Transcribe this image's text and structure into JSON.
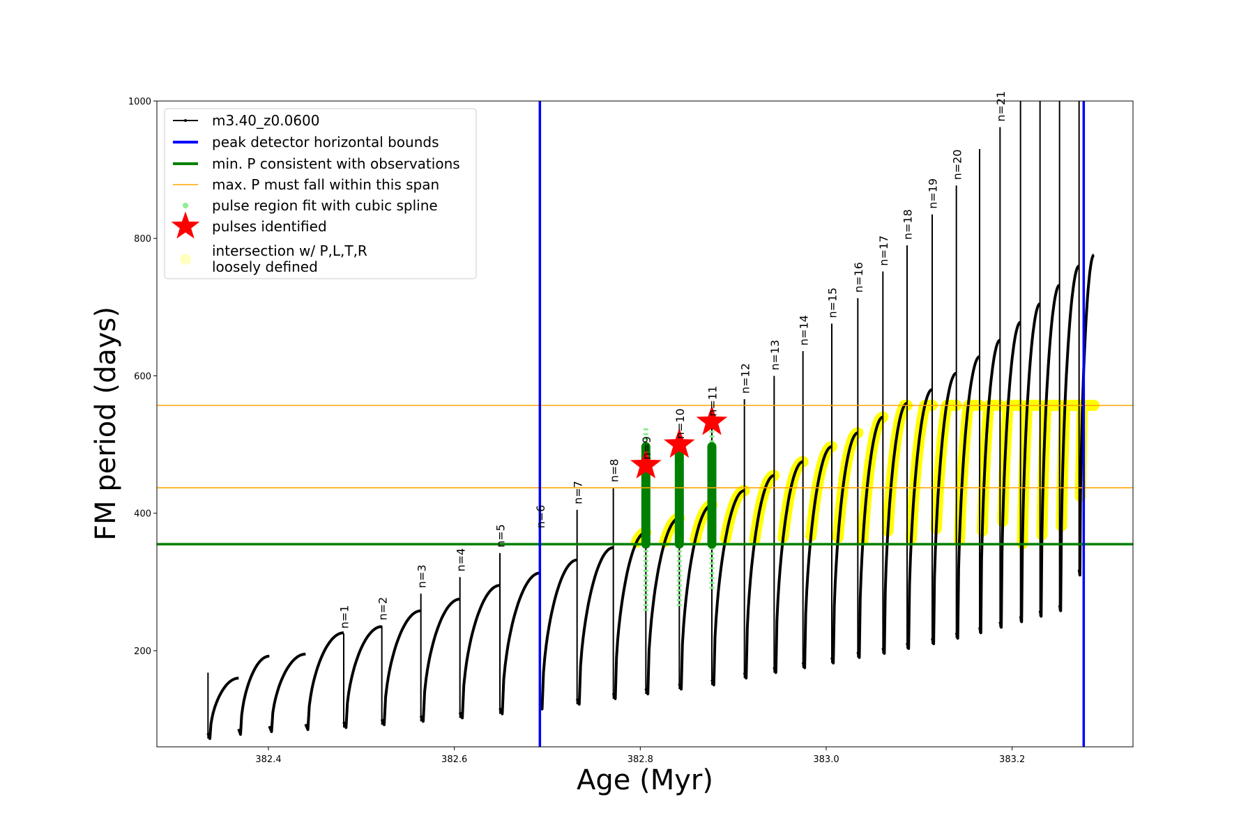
{
  "chart_data": {
    "type": "line",
    "xlabel": "Age (Myr)",
    "ylabel": "FM period (days)",
    "xlim": [
      382.28,
      383.33
    ],
    "ylim": [
      60,
      1000
    ],
    "xticks": [
      {
        "value": 382.4,
        "label": "382.4"
      },
      {
        "value": 382.6,
        "label": "382.6"
      },
      {
        "value": 382.8,
        "label": "382.8"
      },
      {
        "value": 383.0,
        "label": "383.0"
      },
      {
        "value": 383.2,
        "label": "383.2"
      }
    ],
    "yticks": [
      {
        "value": 200,
        "label": "200"
      },
      {
        "value": 400,
        "label": "400"
      },
      {
        "value": 600,
        "label": "600"
      },
      {
        "value": 800,
        "label": "800"
      },
      {
        "value": 1000,
        "label": "1000"
      }
    ],
    "colors": {
      "track": "#000000",
      "bounds": "#0000ff",
      "min_period": "#008000",
      "span": "#ffa500",
      "spline": "#90ee90",
      "pulse_star": "#ff0000",
      "intersection": "#ffff00",
      "loose": "#ffffc0"
    },
    "series_track": {
      "name": "m3.40_z0.0600",
      "cycles": [
        {
          "start": 382.335,
          "min": 72,
          "peak": 160
        },
        {
          "start": 382.368,
          "min": 78,
          "peak": 192
        },
        {
          "start": 382.401,
          "min": 82,
          "peak": 195
        },
        {
          "start": 382.44,
          "min": 85,
          "peak": 226
        },
        {
          "start": 382.481,
          "min": 88,
          "peak": 235
        },
        {
          "start": 382.522,
          "min": 92,
          "peak": 258
        },
        {
          "start": 382.564,
          "min": 97,
          "peak": 275
        },
        {
          "start": 382.606,
          "min": 102,
          "peak": 295
        },
        {
          "start": 382.649,
          "min": 108,
          "peak": 313
        },
        {
          "start": 382.692,
          "min": 115,
          "peak": 332
        },
        {
          "start": 382.732,
          "min": 122,
          "peak": 350
        },
        {
          "start": 382.771,
          "min": 130,
          "peak": 372
        },
        {
          "start": 382.806,
          "min": 137,
          "peak": 393
        },
        {
          "start": 382.842,
          "min": 144,
          "peak": 412
        },
        {
          "start": 382.877,
          "min": 150,
          "peak": 433
        },
        {
          "start": 382.912,
          "min": 160,
          "peak": 455
        },
        {
          "start": 382.944,
          "min": 168,
          "peak": 475
        },
        {
          "start": 382.975,
          "min": 175,
          "peak": 497
        },
        {
          "start": 383.006,
          "min": 182,
          "peak": 517
        },
        {
          "start": 383.034,
          "min": 190,
          "peak": 540
        },
        {
          "start": 383.061,
          "min": 196,
          "peak": 560
        },
        {
          "start": 383.087,
          "min": 203,
          "peak": 580
        },
        {
          "start": 383.114,
          "min": 210,
          "peak": 604
        },
        {
          "start": 383.14,
          "min": 218,
          "peak": 628
        },
        {
          "start": 383.165,
          "min": 226,
          "peak": 652
        },
        {
          "start": 383.187,
          "min": 234,
          "peak": 678
        },
        {
          "start": 383.209,
          "min": 242,
          "peak": 705
        },
        {
          "start": 383.23,
          "min": 250,
          "peak": 732
        },
        {
          "start": 383.251,
          "min": 258,
          "peak": 760
        },
        {
          "start": 383.272,
          "min": 310,
          "peak": 776,
          "end": 383.288
        }
      ],
      "spikes": [
        {
          "x": 382.335,
          "top": 168
        },
        {
          "x": 382.481,
          "top": 225
        },
        {
          "x": 382.522,
          "top": 236
        },
        {
          "x": 382.564,
          "top": 283
        },
        {
          "x": 382.606,
          "top": 307
        },
        {
          "x": 382.649,
          "top": 342
        },
        {
          "x": 382.692,
          "top": 370
        },
        {
          "x": 382.732,
          "top": 405
        },
        {
          "x": 382.771,
          "top": 437
        },
        {
          "x": 382.806,
          "top": 470
        },
        {
          "x": 382.842,
          "top": 500
        },
        {
          "x": 382.877,
          "top": 533
        },
        {
          "x": 382.912,
          "top": 566
        },
        {
          "x": 382.944,
          "top": 600
        },
        {
          "x": 382.975,
          "top": 636
        },
        {
          "x": 383.006,
          "top": 676
        },
        {
          "x": 383.034,
          "top": 713
        },
        {
          "x": 383.061,
          "top": 752
        },
        {
          "x": 383.087,
          "top": 790
        },
        {
          "x": 383.114,
          "top": 835
        },
        {
          "x": 383.14,
          "top": 877
        },
        {
          "x": 383.165,
          "top": 930
        },
        {
          "x": 383.187,
          "top": 962
        },
        {
          "x": 383.209,
          "top": 1000
        },
        {
          "x": 383.23,
          "top": 1000
        },
        {
          "x": 383.251,
          "top": 1000
        },
        {
          "x": 383.272,
          "top": 1000
        }
      ]
    },
    "peak_detector_bounds": [
      382.692,
      383.277
    ],
    "min_period": 355,
    "span": [
      437,
      557
    ],
    "pulses": [
      {
        "x": 382.806,
        "y": 470
      },
      {
        "x": 382.842,
        "y": 500
      },
      {
        "x": 382.877,
        "y": 533
      }
    ],
    "spline_regions": [
      {
        "x": 382.806,
        "ymin": 258,
        "ymax": 525,
        "green_min": 355,
        "green_max": 497
      },
      {
        "x": 382.842,
        "ymin": 265,
        "ymax": 500,
        "green_min": 355,
        "green_max": 495
      },
      {
        "x": 382.877,
        "ymin": 290,
        "ymax": 520,
        "green_min": 355,
        "green_max": 497
      }
    ],
    "pulse_labels": [
      {
        "x": 382.483,
        "y": 232,
        "text": "n=1"
      },
      {
        "x": 382.524,
        "y": 244,
        "text": "n=2"
      },
      {
        "x": 382.566,
        "y": 291,
        "text": "n=3"
      },
      {
        "x": 382.608,
        "y": 315,
        "text": "n=4"
      },
      {
        "x": 382.651,
        "y": 350,
        "text": "n=5"
      },
      {
        "x": 382.694,
        "y": 378,
        "text": "n=6"
      },
      {
        "x": 382.734,
        "y": 413,
        "text": "n=7"
      },
      {
        "x": 382.773,
        "y": 445,
        "text": "n=8"
      },
      {
        "x": 382.808,
        "y": 478,
        "text": "n=9"
      },
      {
        "x": 382.844,
        "y": 508,
        "text": "n=10"
      },
      {
        "x": 382.879,
        "y": 541,
        "text": "n=11"
      },
      {
        "x": 382.914,
        "y": 574,
        "text": "n=12"
      },
      {
        "x": 382.946,
        "y": 608,
        "text": "n=13"
      },
      {
        "x": 382.977,
        "y": 644,
        "text": "n=14"
      },
      {
        "x": 383.008,
        "y": 684,
        "text": "n=15"
      },
      {
        "x": 383.036,
        "y": 721,
        "text": "n=16"
      },
      {
        "x": 383.063,
        "y": 760,
        "text": "n=17"
      },
      {
        "x": 383.089,
        "y": 798,
        "text": "n=18"
      },
      {
        "x": 383.116,
        "y": 843,
        "text": "n=19"
      },
      {
        "x": 383.142,
        "y": 885,
        "text": "n=20"
      },
      {
        "x": 383.189,
        "y": 970,
        "text": "n=21"
      }
    ],
    "legend": [
      {
        "label": "m3.40_z0.0600",
        "kind": "track"
      },
      {
        "label": "peak detector horizontal bounds",
        "kind": "bounds"
      },
      {
        "label": "min. P consistent with observations",
        "kind": "min"
      },
      {
        "label": "max. P must fall within this span",
        "kind": "span"
      },
      {
        "label": "pulse region fit with cubic spline",
        "kind": "spline"
      },
      {
        "label": "pulses identified",
        "kind": "star"
      },
      {
        "label": "intersection w/ P,L,T,R",
        "label2": "loosely defined",
        "kind": "loose"
      }
    ]
  }
}
